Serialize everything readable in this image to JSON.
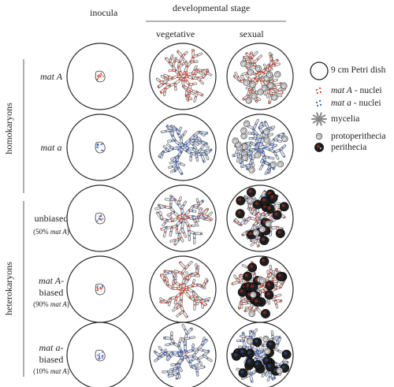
{
  "headers": {
    "inocula": "inocula",
    "developmental_stage": "developmental stage",
    "vegetative": "vegetative",
    "sexual": "sexual"
  },
  "groups": {
    "homokaryons": "homokaryons",
    "heterokaryons": "heterokaryons"
  },
  "rows": [
    {
      "label": "mat A",
      "italic": true,
      "sub": ""
    },
    {
      "label": "mat a",
      "italic": true,
      "sub": ""
    },
    {
      "label": "unbiased",
      "italic": false,
      "sub_pre": "(50% ",
      "sub_it": "mat A",
      "sub_post": ")"
    },
    {
      "label_it": "mat A",
      "label_post": "-",
      "label2": "biased",
      "sub_pre": "(90% ",
      "sub_it": "mat A",
      "sub_post": ")"
    },
    {
      "label_it": "mat a",
      "label_post": "-",
      "label2": "biased",
      "sub_pre": "(10% ",
      "sub_it": "mat A",
      "sub_post": ")"
    }
  ],
  "legend": {
    "petri": "9 cm Petri dish",
    "matA_it": "mat A",
    "matA_post": " - nuclei",
    "mata_it": "mat a",
    "mata_post": " - nuclei",
    "mycelia": "mycelia",
    "protoperithecia": "protoperithecia",
    "perithecia": "perithecia"
  },
  "colors": {
    "matA": "#d9402b",
    "mata": "#3b63b8",
    "hypha_outline": "#6b6b6b",
    "hypha_fill_A": "#f6ecea",
    "hypha_fill_a": "#e2e8f3",
    "hypha_fill_mix": "#efefef",
    "perithecium": "#1e1e1e"
  }
}
